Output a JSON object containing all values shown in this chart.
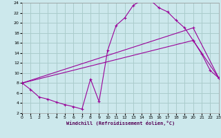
{
  "xlabel": "Windchill (Refroidissement éolien,°C)",
  "bg_color": "#cce8ec",
  "grid_color": "#aacccc",
  "line_color": "#990099",
  "xmin": 0,
  "xmax": 23,
  "ymin": 2,
  "ymax": 24,
  "xticks": [
    0,
    1,
    2,
    3,
    4,
    5,
    6,
    7,
    8,
    9,
    10,
    11,
    12,
    13,
    14,
    15,
    16,
    17,
    18,
    19,
    20,
    21,
    22,
    23
  ],
  "yticks": [
    2,
    4,
    6,
    8,
    10,
    12,
    14,
    16,
    18,
    20,
    22,
    24
  ],
  "line1_x": [
    0,
    1,
    2,
    3,
    4,
    5,
    6,
    7,
    8,
    9,
    10,
    11,
    12,
    13,
    14,
    15,
    16,
    17,
    18,
    19,
    20,
    21,
    22,
    23
  ],
  "line1_y": [
    8.0,
    6.7,
    5.2,
    4.8,
    4.2,
    3.7,
    3.3,
    2.8,
    8.8,
    4.3,
    14.5,
    19.5,
    21.0,
    23.5,
    24.5,
    24.5,
    23.0,
    22.2,
    20.5,
    19.0,
    16.5,
    13.8,
    10.5,
    9.0
  ],
  "line2_x": [
    0,
    20,
    23
  ],
  "line2_y": [
    8.0,
    19.0,
    9.0
  ],
  "line3_x": [
    0,
    20,
    23
  ],
  "line3_y": [
    8.0,
    16.5,
    9.0
  ]
}
